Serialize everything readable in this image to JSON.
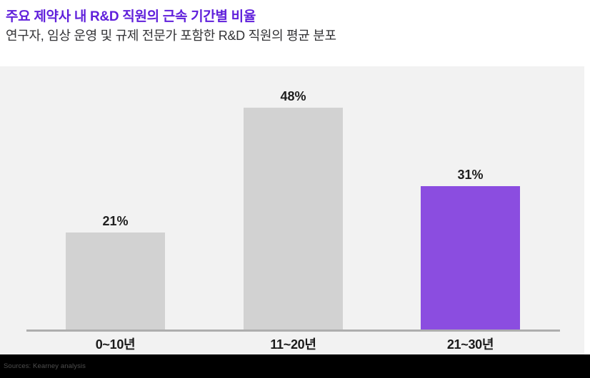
{
  "header": {
    "title": "주요 제약사 내 R&D 직원의 근속 기간별 비율",
    "subtitle": "연구자, 임상 운영 및 규제 전문가 포함한 R&D 직원의 평균 분포"
  },
  "chart_data": {
    "type": "bar",
    "title": "주요 제약사 내 R&D 직원의 근속 기간별 비율",
    "subtitle": "연구자, 임상 운영 및 규제 전문가 포함한 R&D 직원의 평균 분포",
    "categories": [
      "0~10년",
      "11~20년",
      "21~30년"
    ],
    "values": [
      21,
      48,
      31
    ],
    "value_labels": [
      "21%",
      "48%",
      "31%"
    ],
    "bar_colors": [
      "#D2D2D2",
      "#D2D2D2",
      "#8B4DE0"
    ],
    "highlight_index": 2,
    "xlabel": "",
    "ylabel": "",
    "ylim": [
      0,
      57
    ],
    "grid": false,
    "legend": null,
    "data_labels": "above-bar"
  },
  "footer": {
    "source": "Sources: Kearney analysis"
  },
  "colors": {
    "title_text": "#6020DB",
    "subtitle_text": "#333336",
    "panel_background": "#F2F2F2",
    "bar_default": "#D2D2D2",
    "bar_highlight": "#8B4DE0",
    "axis_line": "#AEAEAE",
    "footer_background": "#000000",
    "footer_text": "#4F4F4F"
  }
}
